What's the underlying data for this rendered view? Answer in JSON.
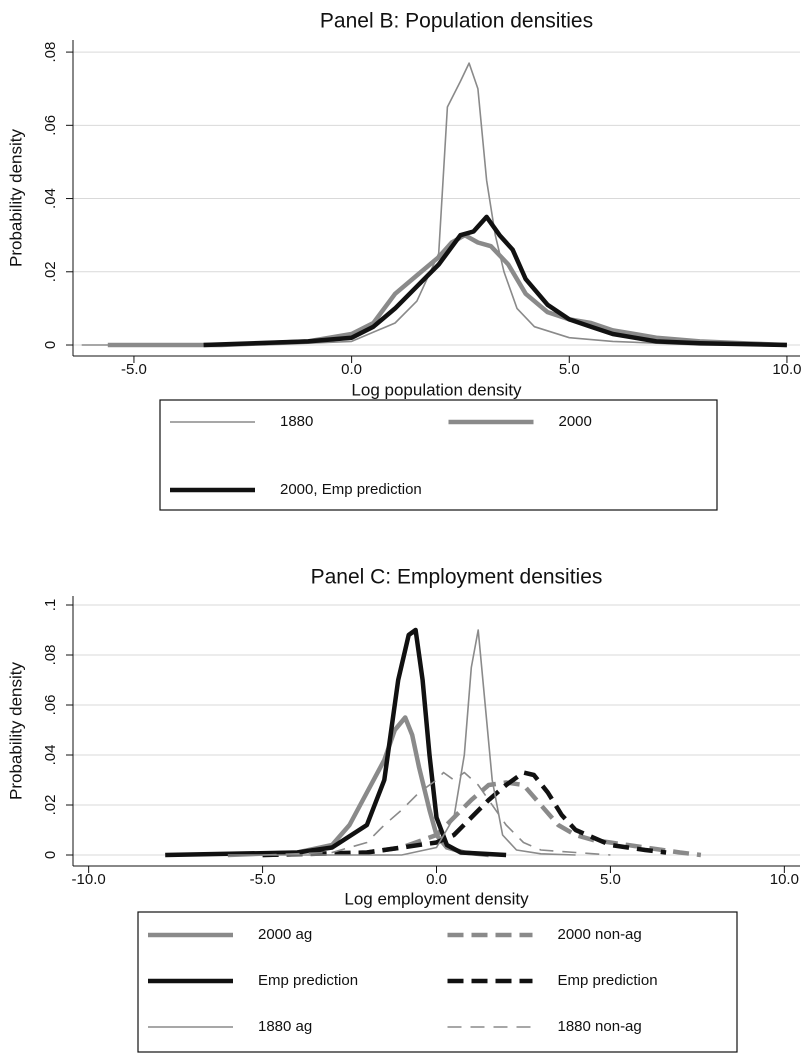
{
  "chart_data": [
    {
      "type": "line",
      "title": "Panel B: Population densities",
      "xlabel": "Log population density",
      "ylabel": "Probability density",
      "xlim": [
        -6.4,
        10.3
      ],
      "ylim": [
        -0.003,
        0.0833
      ],
      "xticks": [
        {
          "value": -5,
          "label": "-5.0"
        },
        {
          "value": 0,
          "label": "0.0"
        },
        {
          "value": 5,
          "label": "5.0"
        },
        {
          "value": 10,
          "label": "10.0"
        }
      ],
      "yticks": [
        0,
        {
          "value": 0.02,
          "label": ".02"
        },
        {
          "value": 0.04,
          "label": ".04"
        },
        {
          "value": 0.06,
          "label": ".06"
        },
        {
          "value": 0.08,
          "label": ".08"
        }
      ],
      "grid": true,
      "legend": "bottom",
      "legend_columns": 2,
      "series": [
        {
          "name": "1880",
          "color": "#8a8a8a",
          "style": "thin",
          "x": [
            -6.2,
            -2,
            0,
            1,
            1.5,
            2,
            2.2,
            2.5,
            2.7,
            2.9,
            3.1,
            3.3,
            3.5,
            3.8,
            4.2,
            5,
            6,
            8,
            10
          ],
          "values": [
            0,
            0,
            0.001,
            0.006,
            0.012,
            0.025,
            0.065,
            0.072,
            0.077,
            0.07,
            0.045,
            0.03,
            0.02,
            0.01,
            0.005,
            0.002,
            0.001,
            0,
            0
          ]
        },
        {
          "name": "2000",
          "color": "#8a8a8a",
          "style": "thick",
          "x": [
            -5.6,
            -3,
            -1,
            0,
            0.5,
            1,
            1.5,
            2,
            2.3,
            2.6,
            2.9,
            3.2,
            3.6,
            4,
            4.5,
            5,
            5.5,
            6,
            6.5,
            7,
            8,
            9,
            10
          ],
          "values": [
            0,
            0,
            0.001,
            0.003,
            0.006,
            0.014,
            0.019,
            0.024,
            0.028,
            0.03,
            0.028,
            0.027,
            0.022,
            0.014,
            0.009,
            0.007,
            0.006,
            0.004,
            0.003,
            0.002,
            0.001,
            0.0005,
            0
          ]
        },
        {
          "name": "2000, Emp prediction",
          "color": "#111111",
          "style": "thick",
          "x": [
            -3.4,
            -1,
            0,
            0.5,
            1,
            1.5,
            2,
            2.5,
            2.8,
            3.1,
            3.4,
            3.7,
            4,
            4.5,
            5,
            5.5,
            6,
            6.5,
            7,
            8,
            10
          ],
          "values": [
            0,
            0.001,
            0.002,
            0.005,
            0.01,
            0.016,
            0.022,
            0.03,
            0.031,
            0.035,
            0.03,
            0.026,
            0.018,
            0.011,
            0.007,
            0.005,
            0.003,
            0.002,
            0.001,
            0.0005,
            0
          ]
        }
      ]
    },
    {
      "type": "line",
      "title": "Panel C: Employment densities",
      "xlabel": "Log employment density",
      "ylabel": "Probability density",
      "xlim": [
        -10.45,
        10.45
      ],
      "ylim": [
        -0.0044,
        0.1036
      ],
      "xticks": [
        {
          "value": -10,
          "label": "-10.0"
        },
        {
          "value": -5,
          "label": "-5.0"
        },
        {
          "value": 0,
          "label": "0.0"
        },
        {
          "value": 5,
          "label": "5.0"
        },
        {
          "value": 10,
          "label": "10.0"
        }
      ],
      "yticks": [
        0,
        {
          "value": 0.02,
          "label": ".02"
        },
        {
          "value": 0.04,
          "label": ".04"
        },
        {
          "value": 0.06,
          "label": ".06"
        },
        {
          "value": 0.08,
          "label": ".08"
        },
        {
          "value": 0.1,
          "label": ".1"
        }
      ],
      "grid": true,
      "legend": "bottom",
      "legend_columns": 2,
      "series": [
        {
          "name": "2000 ag",
          "color": "#8a8a8a",
          "style": "thick",
          "x": [
            -6,
            -4,
            -3,
            -2.5,
            -2,
            -1.5,
            -1.2,
            -0.9,
            -0.7,
            -0.5,
            -0.2,
            0,
            0.3,
            0.8,
            1.5
          ],
          "values": [
            0,
            0.001,
            0.004,
            0.012,
            0.025,
            0.038,
            0.05,
            0.055,
            0.048,
            0.035,
            0.018,
            0.008,
            0.003,
            0.001,
            0
          ]
        },
        {
          "name": "2000 non-ag",
          "color": "#8a8a8a",
          "style": "thick",
          "dashed": true,
          "x": [
            -5,
            -2,
            -1,
            0,
            0.5,
            1,
            1.5,
            2,
            2.5,
            3,
            3.5,
            4,
            4.5,
            5,
            5.5,
            6,
            6.5,
            7,
            7.6
          ],
          "values": [
            0,
            0.001,
            0.003,
            0.008,
            0.015,
            0.022,
            0.028,
            0.029,
            0.028,
            0.02,
            0.012,
            0.008,
            0.006,
            0.005,
            0.004,
            0.003,
            0.002,
            0.001,
            0
          ]
        },
        {
          "name": "Emp prediction",
          "color": "#111111",
          "style": "thick",
          "x": [
            -7.8,
            -4,
            -3,
            -2,
            -1.5,
            -1.1,
            -0.8,
            -0.6,
            -0.4,
            -0.2,
            0,
            0.3,
            0.7,
            2
          ],
          "values": [
            0,
            0.001,
            0.003,
            0.012,
            0.03,
            0.07,
            0.088,
            0.09,
            0.07,
            0.04,
            0.015,
            0.004,
            0.001,
            0
          ]
        },
        {
          "name": "Emp prediction",
          "color": "#111111",
          "style": "thick",
          "dashed": true,
          "x": [
            -5,
            -2,
            -1,
            0,
            0.5,
            1,
            1.5,
            2,
            2.5,
            2.8,
            3.2,
            3.6,
            4,
            4.5,
            5,
            5.5,
            6,
            6.6
          ],
          "values": [
            0,
            0.001,
            0.003,
            0.005,
            0.008,
            0.015,
            0.022,
            0.028,
            0.033,
            0.032,
            0.025,
            0.016,
            0.01,
            0.007,
            0.004,
            0.003,
            0.002,
            0.001
          ]
        },
        {
          "name": "1880 ag",
          "color": "#8a8a8a",
          "style": "thin",
          "x": [
            -6,
            -1,
            0,
            0.5,
            0.8,
            1,
            1.2,
            1.4,
            1.6,
            1.9,
            2.3,
            3,
            4
          ],
          "values": [
            0,
            0,
            0.003,
            0.015,
            0.04,
            0.075,
            0.09,
            0.06,
            0.03,
            0.008,
            0.002,
            0.0005,
            0
          ]
        },
        {
          "name": "1880 non-ag",
          "color": "#8a8a8a",
          "style": "thin",
          "dashed": true,
          "x": [
            -5,
            -3,
            -2,
            -1.5,
            -1,
            -0.5,
            0,
            0.2,
            0.5,
            0.8,
            1.2,
            1.6,
            2,
            2.5,
            3,
            4,
            5
          ],
          "values": [
            0,
            0.001,
            0.005,
            0.012,
            0.018,
            0.025,
            0.03,
            0.033,
            0.03,
            0.033,
            0.028,
            0.02,
            0.012,
            0.005,
            0.002,
            0.001,
            0
          ]
        }
      ]
    }
  ]
}
